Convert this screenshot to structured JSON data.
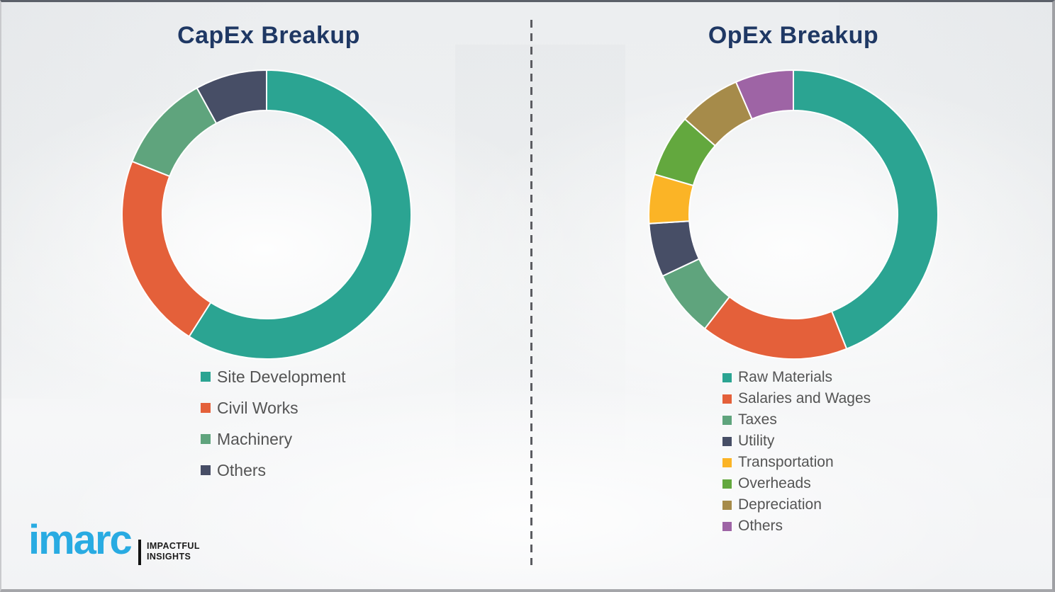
{
  "brand": {
    "title_color": "#1F3864",
    "legend_color": "#545454",
    "logo_blue": "#29ABE2",
    "divider_color": "#5b5c61"
  },
  "logo": {
    "brand": "imarc",
    "tagline_line1": "IMPACTFUL",
    "tagline_line2": "INSIGHTS"
  },
  "chart_data": [
    {
      "type": "donut",
      "title": "CapEx Breakup",
      "categories": [
        "Site Development",
        "Civil Works",
        "Machinery",
        "Others"
      ],
      "values": [
        59,
        22,
        11,
        8
      ],
      "colors": [
        "#2BA492",
        "#E4603A",
        "#5FA47D",
        "#474E66"
      ],
      "values_note": "percent, estimated from arc angles (no numeric labels shown)",
      "start_angle_deg": 0,
      "direction": "clockwise",
      "inner_radius_ratio": 0.72,
      "legend_position": "below-left",
      "segment_gap_color": "#ffffff"
    },
    {
      "type": "donut",
      "title": "OpEx Breakup",
      "categories": [
        "Raw Materials",
        "Salaries and Wages",
        "Taxes",
        "Utility",
        "Transportation",
        "Overheads",
        "Depreciation",
        "Others"
      ],
      "values": [
        44,
        16.5,
        7.5,
        6,
        5.5,
        7,
        7,
        6.5
      ],
      "colors": [
        "#2BA492",
        "#E4603A",
        "#5FA47D",
        "#474E66",
        "#FBB426",
        "#63A83E",
        "#A68B4A",
        "#9E64A5"
      ],
      "values_note": "percent, estimated from arc angles (no numeric labels shown)",
      "start_angle_deg": 0,
      "direction": "clockwise",
      "inner_radius_ratio": 0.72,
      "legend_position": "below-left",
      "segment_gap_color": "#ffffff"
    }
  ]
}
